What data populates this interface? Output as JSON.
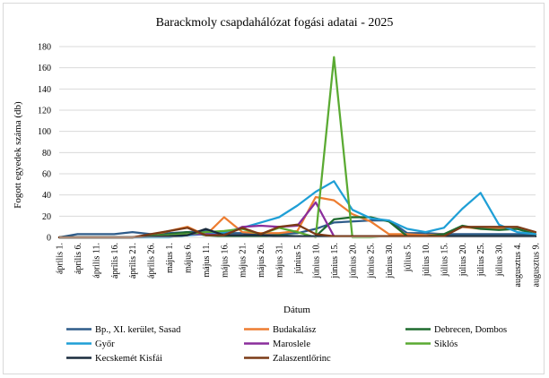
{
  "chart_data": {
    "type": "line",
    "title": "Barackmoly csapdahálózat fogási adatai - 2025",
    "xlabel": "Dátum",
    "ylabel": "Fogott egyedek száma (db)",
    "ylim": [
      0,
      180
    ],
    "yticks": [
      0,
      20,
      40,
      60,
      80,
      100,
      120,
      140,
      160,
      180
    ],
    "grid": true,
    "legend_position": "bottom",
    "categories": [
      "április 1.",
      "április 6.",
      "április 11.",
      "április 16.",
      "április 21.",
      "április 26.",
      "május 1.",
      "május 6.",
      "május 11.",
      "május 16.",
      "május 21.",
      "május 26.",
      "május 31.",
      "június 5.",
      "június 10.",
      "június 15.",
      "június 20.",
      "június 25.",
      "június 30.",
      "július 5.",
      "július 10.",
      "július 15.",
      "július 20.",
      "július 25.",
      "július 30.",
      "augusztus 4.",
      "augusztus 9."
    ],
    "series": [
      {
        "name": "Bp., XI. kerület, Sasad",
        "color": "#2e5c8a",
        "x": [
          0,
          1,
          2,
          3,
          4,
          5,
          6,
          7,
          8,
          9,
          10,
          11,
          12,
          13,
          14,
          15,
          16,
          17,
          18,
          19,
          20,
          21,
          22,
          23,
          24,
          25,
          26
        ],
        "values": [
          0,
          3,
          3,
          3,
          5,
          3,
          4,
          5,
          6,
          4,
          4,
          3,
          3,
          4,
          8,
          14,
          15,
          16,
          16,
          4,
          4,
          3,
          3,
          3,
          3,
          3,
          3
        ]
      },
      {
        "name": "Budakalász",
        "color": "#ed7d31",
        "x": [
          0,
          2,
          4,
          5,
          6,
          7,
          8,
          9,
          10,
          11,
          12,
          13,
          14,
          15,
          16,
          17,
          18,
          19,
          20,
          21,
          22,
          23,
          24,
          25,
          26
        ],
        "values": [
          0,
          0,
          0,
          2,
          6,
          10,
          2,
          19,
          5,
          4,
          4,
          6,
          38,
          35,
          22,
          15,
          3,
          3,
          2,
          3,
          10,
          8,
          8,
          8,
          3
        ]
      },
      {
        "name": "Debrecen, Dombos",
        "color": "#1e6b2e",
        "x": [
          0,
          2,
          4,
          6,
          7,
          8,
          9,
          10,
          11,
          12,
          13,
          14,
          15,
          16,
          17,
          18,
          19,
          20,
          21,
          22,
          23,
          24,
          25,
          26
        ],
        "values": [
          0,
          0,
          0,
          3,
          5,
          2,
          1,
          1,
          1,
          2,
          1,
          1,
          17,
          19,
          19,
          15,
          1,
          1,
          3,
          11,
          8,
          7,
          8,
          3
        ]
      },
      {
        "name": "Győr",
        "color": "#1f9fd6",
        "x": [
          0,
          4,
          6,
          7,
          8,
          9,
          10,
          11,
          12,
          13,
          14,
          15,
          16,
          17,
          18,
          19,
          20,
          21,
          22,
          23,
          24,
          25,
          26
        ],
        "values": [
          0,
          0,
          0,
          2,
          3,
          5,
          9,
          14,
          19,
          30,
          43,
          53,
          26,
          18,
          16,
          8,
          5,
          9,
          27,
          42,
          12,
          5,
          3
        ]
      },
      {
        "name": "Maroslele",
        "color": "#8a2d9b",
        "x": [
          0,
          4,
          6,
          7,
          8,
          9,
          10,
          11,
          12,
          13,
          14,
          15,
          16,
          17,
          18,
          19,
          20,
          21,
          22,
          23,
          24,
          25,
          26
        ],
        "values": [
          0,
          0,
          2,
          3,
          3,
          2,
          10,
          11,
          10,
          11,
          33,
          1,
          1,
          1,
          1,
          1,
          1,
          1,
          1,
          1,
          1,
          1,
          1
        ]
      },
      {
        "name": "Siklós",
        "color": "#5aaa32",
        "x": [
          0,
          4,
          6,
          7,
          8,
          9,
          10,
          11,
          12,
          13,
          14,
          15,
          16,
          17,
          18,
          19,
          20,
          21,
          22,
          23,
          24,
          25,
          26
        ],
        "values": [
          0,
          0,
          2,
          3,
          5,
          6,
          8,
          3,
          9,
          5,
          0,
          170,
          0,
          0,
          1,
          1,
          1,
          1,
          1,
          1,
          1,
          1,
          1
        ]
      },
      {
        "name": "Kecskemét Kisfái",
        "color": "#1a2b3d",
        "x": [
          0,
          4,
          6,
          7,
          8,
          9,
          10,
          11,
          12,
          13,
          14,
          15,
          16,
          17,
          18,
          19,
          20,
          21,
          22,
          23,
          24,
          25,
          26
        ],
        "values": [
          0,
          0,
          1,
          2,
          8,
          2,
          2,
          2,
          1,
          1,
          1,
          1,
          1,
          1,
          1,
          1,
          1,
          1,
          1,
          1,
          1,
          1,
          1
        ]
      },
      {
        "name": "Zalaszentlőrinc",
        "color": "#7b3a16",
        "x": [
          0,
          4,
          5,
          6,
          7,
          8,
          9,
          10,
          11,
          12,
          13,
          14,
          15,
          16,
          17,
          18,
          19,
          20,
          21,
          22,
          23,
          24,
          25,
          26
        ],
        "values": [
          0,
          0,
          3,
          6,
          9,
          2,
          2,
          9,
          3,
          10,
          12,
          3,
          1,
          1,
          1,
          1,
          1,
          1,
          1,
          10,
          10,
          10,
          10,
          5
        ]
      }
    ]
  }
}
